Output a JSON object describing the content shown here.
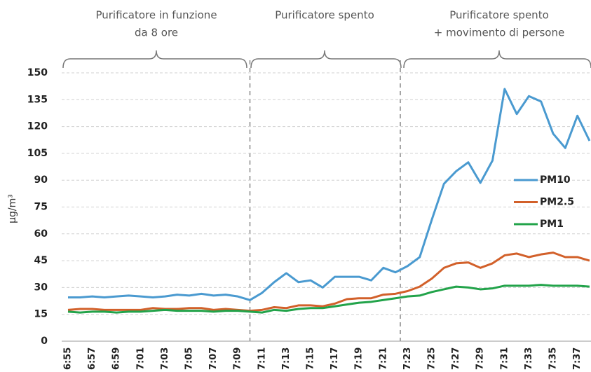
{
  "chart_data": {
    "type": "line",
    "annotations": [
      {
        "lines": [
          "Purificatore in funzione",
          "da 8 ore"
        ]
      },
      {
        "lines": [
          "Purificatore spento"
        ]
      },
      {
        "lines": [
          "Purificatore spento",
          "+ movimento di persone"
        ]
      }
    ],
    "y_label": "µg/m³",
    "categories": [
      "6:55",
      null,
      "6:57",
      null,
      "6:59",
      null,
      "7:01",
      null,
      "7:03",
      null,
      "7:05",
      null,
      "7:07",
      null,
      "7:09",
      null,
      "7:11",
      null,
      "7:13",
      null,
      "7:15",
      null,
      "7:17",
      null,
      "7:19",
      null,
      "7:21",
      null,
      "7:23",
      null,
      "7:25",
      null,
      "7:27",
      null,
      "7:29",
      null,
      "7:31",
      null,
      "7:33",
      null,
      "7:35",
      null,
      "7:37",
      null
    ],
    "series": [
      {
        "name": "PM10",
        "color": "#4a9ad0",
        "values": [
          24.5,
          24.5,
          25,
          24.5,
          25,
          25.5,
          25,
          24.5,
          25,
          26,
          25.5,
          26.5,
          25.5,
          26,
          25,
          23,
          27,
          33,
          38,
          33,
          34,
          30,
          36,
          36,
          36,
          34,
          41,
          38.5,
          42,
          47,
          68,
          88,
          95,
          100,
          88.5,
          101,
          141,
          127,
          137,
          134,
          116,
          108,
          126,
          112
        ]
      },
      {
        "name": "PM2.5",
        "color": "#d2602a",
        "values": [
          17.5,
          18,
          18,
          17.5,
          17.5,
          17.5,
          17.5,
          18.5,
          18,
          18,
          18.5,
          18.5,
          17.5,
          18,
          17.5,
          17,
          17.5,
          19,
          18.5,
          20,
          20,
          19.5,
          21,
          23.5,
          24,
          24,
          26,
          26.5,
          28,
          30.5,
          35,
          41,
          43.5,
          44,
          41,
          43.5,
          48,
          49,
          47,
          48.5,
          49.5,
          47,
          47,
          45
        ]
      },
      {
        "name": "PM1",
        "color": "#22a34a",
        "values": [
          16.5,
          16,
          16.5,
          16.5,
          16,
          16.5,
          16.5,
          17,
          17.5,
          17,
          17,
          17,
          16.5,
          17,
          17,
          16.5,
          16,
          17.5,
          17,
          18,
          18.5,
          18.5,
          19.5,
          20.5,
          21.5,
          22,
          23,
          24,
          25,
          25.5,
          27.5,
          29,
          30.5,
          30,
          29,
          29.5,
          31,
          31,
          31,
          31.5,
          31,
          31,
          31,
          30.5
        ]
      }
    ],
    "ylim": [
      0,
      150
    ],
    "yticks": [
      0,
      15,
      30,
      45,
      60,
      75,
      90,
      105,
      120,
      135,
      150
    ],
    "grid": true,
    "legend": "right"
  }
}
